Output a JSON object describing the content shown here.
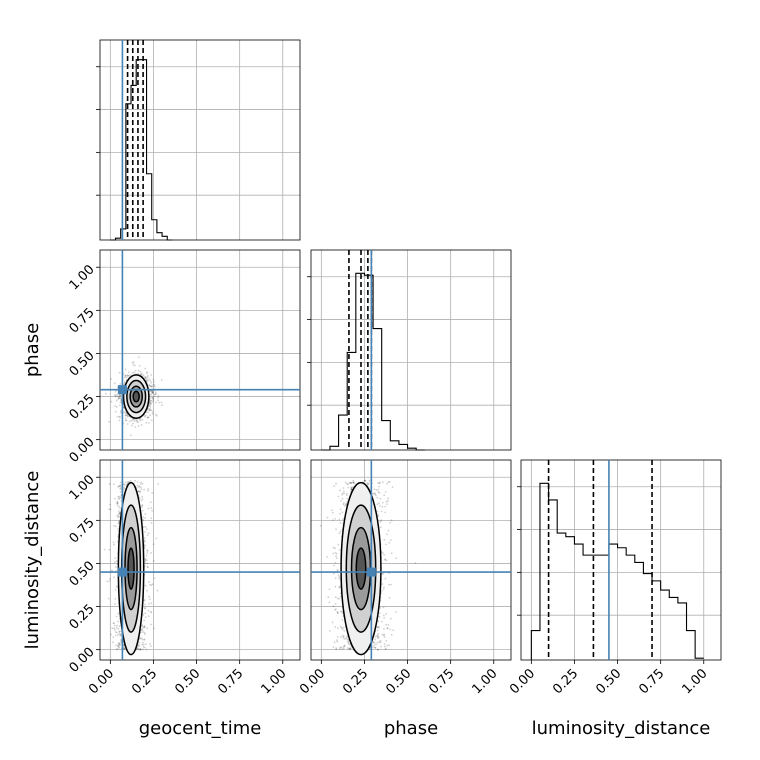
{
  "chart_data": {
    "type": "corner",
    "parameters": [
      "geocent_time",
      "phase",
      "luminosity_distance"
    ],
    "truths": {
      "geocent_time": 0.07,
      "phase": 0.29,
      "luminosity_distance": 0.45
    },
    "truth_color": "#4682b4",
    "axis_ticks": [
      "0.00",
      "0.25",
      "0.50",
      "0.75",
      "1.00"
    ],
    "axis_ranges": {
      "geocent_time": [
        -0.06,
        1.1
      ],
      "phase": [
        -0.06,
        1.1
      ],
      "luminosity_distance": [
        -0.06,
        1.1
      ]
    },
    "grid": true,
    "diagonal": [
      {
        "param": "geocent_time",
        "bins_x": [
          0.0,
          0.03,
          0.06,
          0.09,
          0.12,
          0.15,
          0.18,
          0.21,
          0.24,
          0.27,
          0.3,
          0.33,
          0.36
        ],
        "counts": [
          0,
          0.01,
          0.06,
          0.74,
          0.84,
          0.98,
          0.98,
          0.36,
          0.11,
          0.04,
          0.02,
          0.0
        ],
        "quantiles": [
          0.1,
          0.13,
          0.16,
          0.19
        ]
      },
      {
        "param": "phase",
        "bins_x": [
          0.0,
          0.05,
          0.1,
          0.15,
          0.2,
          0.25,
          0.3,
          0.35,
          0.4,
          0.45,
          0.5,
          0.55,
          0.6
        ],
        "counts": [
          0.0,
          0.02,
          0.19,
          0.53,
          0.96,
          0.95,
          0.66,
          0.16,
          0.05,
          0.03,
          0.01,
          0.0
        ],
        "quantiles": [
          0.16,
          0.23,
          0.27,
          0.29
        ]
      },
      {
        "param": "luminosity_distance",
        "bins_x": [
          0.0,
          0.05,
          0.1,
          0.15,
          0.2,
          0.25,
          0.3,
          0.35,
          0.4,
          0.45,
          0.5,
          0.55,
          0.6,
          0.65,
          0.7,
          0.75,
          0.8,
          0.85,
          0.9,
          0.95,
          1.0
        ],
        "counts": [
          0.16,
          0.96,
          0.87,
          0.69,
          0.67,
          0.63,
          0.57,
          0.57,
          0.57,
          0.63,
          0.61,
          0.57,
          0.53,
          0.47,
          0.43,
          0.38,
          0.34,
          0.31,
          0.16,
          0.01
        ],
        "quantiles": [
          0.1,
          0.36,
          0.7
        ]
      }
    ],
    "pairs": [
      {
        "x": "geocent_time",
        "y": "phase",
        "center": [
          0.15,
          0.25
        ],
        "spread": [
          0.035,
          0.06
        ]
      },
      {
        "x": "geocent_time",
        "y": "luminosity_distance",
        "center": [
          0.12,
          0.45
        ],
        "spread": [
          0.035,
          0.28
        ]
      },
      {
        "x": "phase",
        "y": "luminosity_distance",
        "center": [
          0.23,
          0.45
        ],
        "spread": [
          0.055,
          0.28
        ]
      }
    ]
  }
}
